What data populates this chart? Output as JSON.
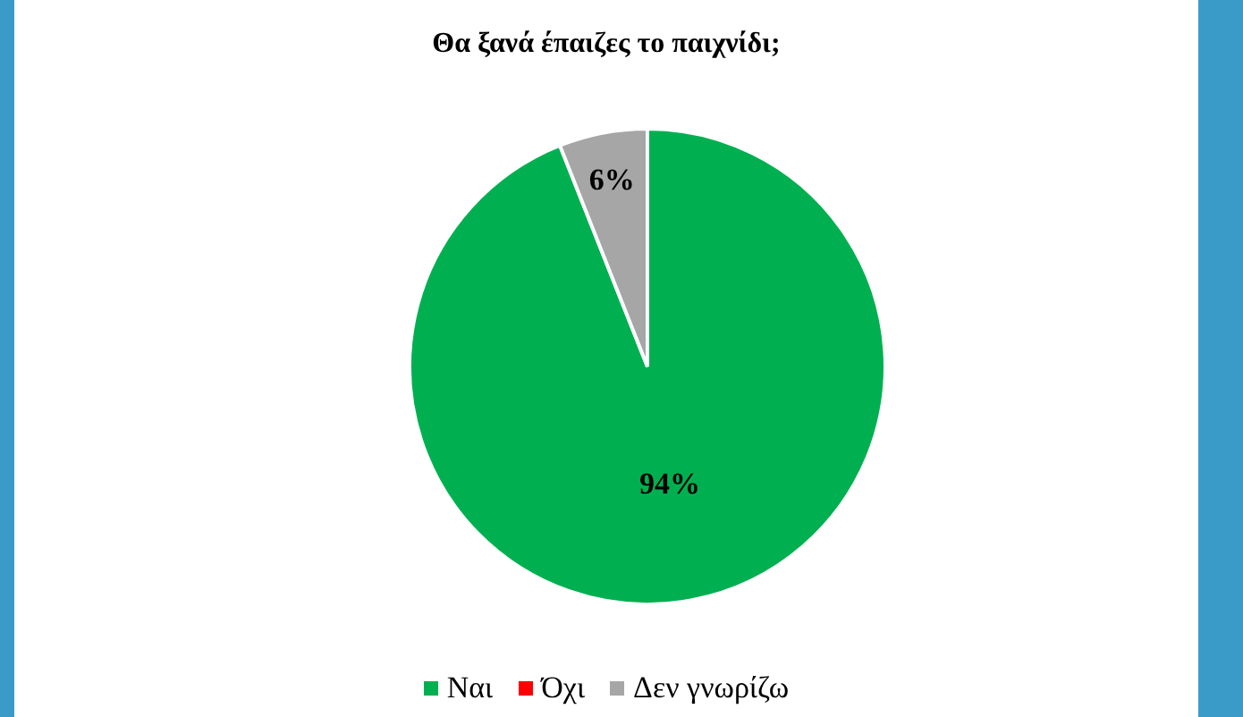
{
  "chart_data": {
    "type": "pie",
    "title": "Θα ξανά έπαιζες το παιχνίδι;",
    "categories": [
      "Ναι",
      "Όχι",
      "Δεν γνωρίζω"
    ],
    "values": [
      94,
      0,
      6
    ],
    "colors": [
      "#00b050",
      "#ff0000",
      "#a6a6a6"
    ],
    "value_labels": [
      "94%",
      null,
      "6%"
    ],
    "legend": "bottom"
  }
}
